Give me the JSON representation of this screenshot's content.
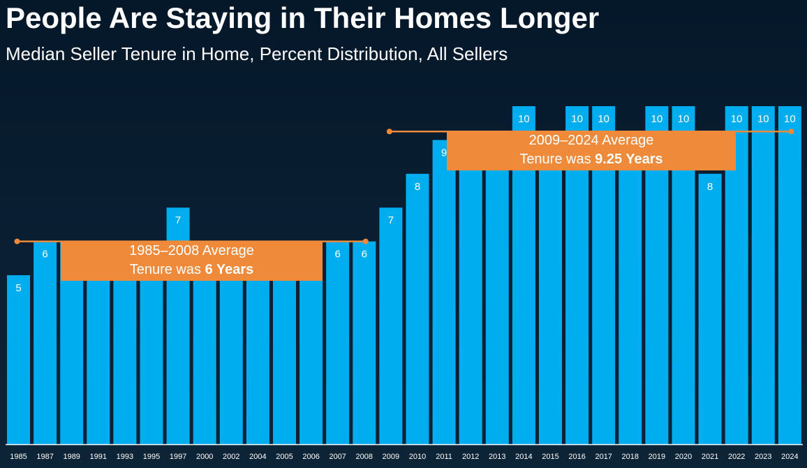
{
  "title": "People Are Staying in Their Homes Longer",
  "subtitle": "Median Seller Tenure in Home, Percent Distribution, All Sellers",
  "colors": {
    "bar": "#00adef",
    "label": "#ffffff",
    "average": "#ee8a3a",
    "axis": "#ffffff"
  },
  "chart_data": {
    "type": "bar",
    "categories": [
      "1985",
      "1987",
      "1989",
      "1991",
      "1993",
      "1995",
      "1997",
      "2000",
      "2002",
      "2004",
      "2005",
      "2006",
      "2007",
      "2008",
      "2009",
      "2010",
      "2011",
      "2012",
      "2013",
      "2014",
      "2015",
      "2016",
      "2017",
      "2018",
      "2019",
      "2020",
      "2021",
      "2022",
      "2023",
      "2024"
    ],
    "values": [
      5,
      6,
      6,
      6,
      6,
      6,
      7,
      6,
      6,
      6,
      6,
      6,
      6,
      6,
      7,
      8,
      9,
      9,
      9,
      10,
      9,
      10,
      10,
      9,
      10,
      10,
      8,
      10,
      10,
      10
    ],
    "ylim": [
      0,
      10
    ],
    "annotations": [
      {
        "from": "1985",
        "to": "2008",
        "value": 6,
        "line1": "1985–2008 Average",
        "line2_prefix": "Tenure was ",
        "line2_bold": "6 Years"
      },
      {
        "from": "2009",
        "to": "2024",
        "value": 9.25,
        "line1": "2009–2024 Average",
        "line2_prefix": "Tenure was ",
        "line2_bold": "9.25 Years"
      }
    ]
  }
}
